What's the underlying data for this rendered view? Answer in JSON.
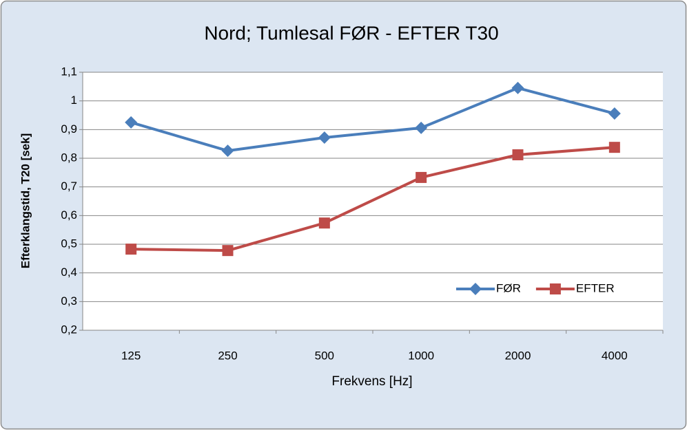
{
  "chart_data": {
    "type": "line",
    "title": "Nord; Tumlesal FØR - EFTER   T30",
    "xlabel": "Frekvens [Hz]",
    "ylabel": "Efterklangstid, T20 [sek]",
    "categories": [
      "125",
      "250",
      "500",
      "1000",
      "2000",
      "4000"
    ],
    "series": [
      {
        "name": "FØR",
        "color": "#4a7ebb",
        "marker": "diamond",
        "values": [
          0.925,
          0.826,
          0.872,
          0.906,
          1.045,
          0.956
        ]
      },
      {
        "name": "EFTER",
        "color": "#be4b48",
        "marker": "square",
        "values": [
          0.483,
          0.478,
          0.574,
          0.733,
          0.812,
          0.838
        ]
      }
    ],
    "ylim": [
      0.2,
      1.1
    ],
    "yticks": [
      {
        "value": 0.2,
        "label": "0,2"
      },
      {
        "value": 0.3,
        "label": "0,3"
      },
      {
        "value": 0.4,
        "label": "0,4"
      },
      {
        "value": 0.5,
        "label": "0,5"
      },
      {
        "value": 0.6,
        "label": "0,6"
      },
      {
        "value": 0.7,
        "label": "0,7"
      },
      {
        "value": 0.8,
        "label": "0,8"
      },
      {
        "value": 0.9,
        "label": "0,9"
      },
      1,
      {
        "value": 1.1,
        "label": "1,1"
      }
    ],
    "grid": true,
    "legend": "lower right"
  }
}
